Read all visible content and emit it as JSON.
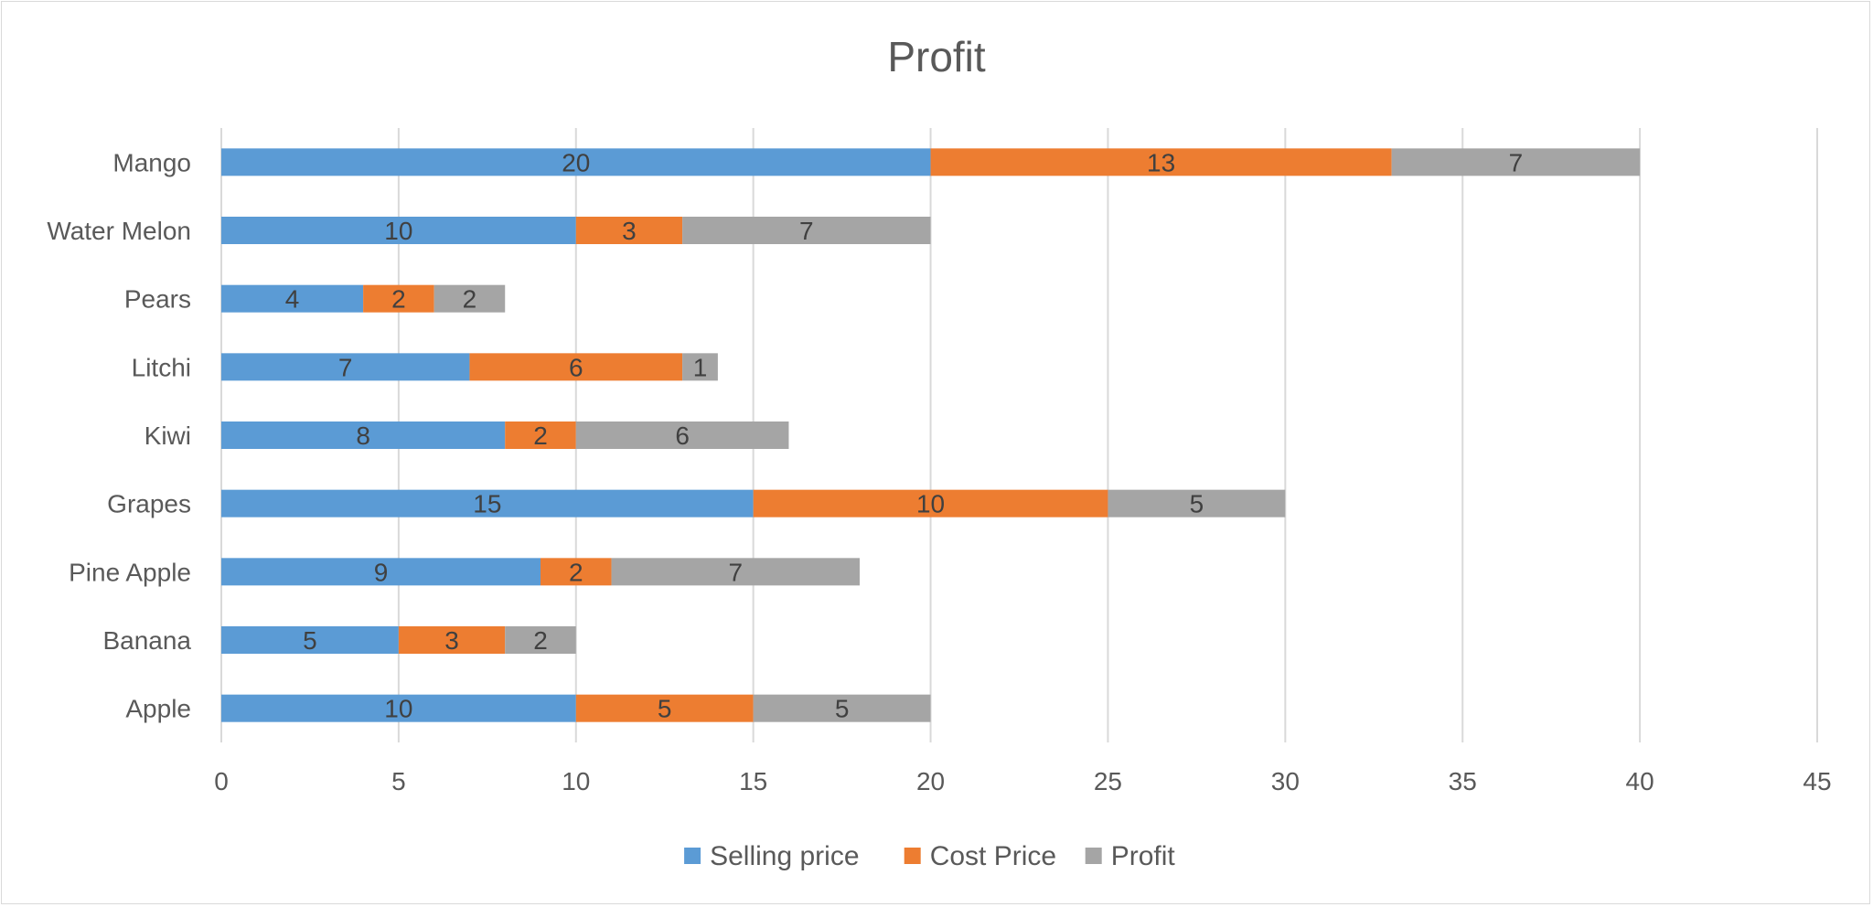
{
  "chart_data": {
    "type": "bar",
    "orientation": "horizontal",
    "stacked": true,
    "title": "Profit",
    "categories": [
      "Apple",
      "Banana",
      "Pine Apple",
      "Grapes",
      "Kiwi",
      "Litchi",
      "Pears",
      "Water Melon",
      "Mango"
    ],
    "series": [
      {
        "name": "Selling price",
        "color": "#5b9bd5",
        "values": [
          10,
          5,
          9,
          15,
          8,
          7,
          4,
          10,
          20
        ]
      },
      {
        "name": "Cost Price",
        "color": "#ed7d31",
        "values": [
          5,
          3,
          2,
          10,
          2,
          6,
          2,
          3,
          13
        ]
      },
      {
        "name": "Profit",
        "color": "#a5a5a5",
        "values": [
          5,
          2,
          7,
          5,
          6,
          1,
          2,
          7,
          7
        ]
      }
    ],
    "xlim": [
      0,
      45
    ],
    "xticks": [
      0,
      5,
      10,
      15,
      20,
      25,
      30,
      35,
      40,
      45
    ],
    "grid": true,
    "legend_position": "bottom",
    "data_labels": true
  }
}
